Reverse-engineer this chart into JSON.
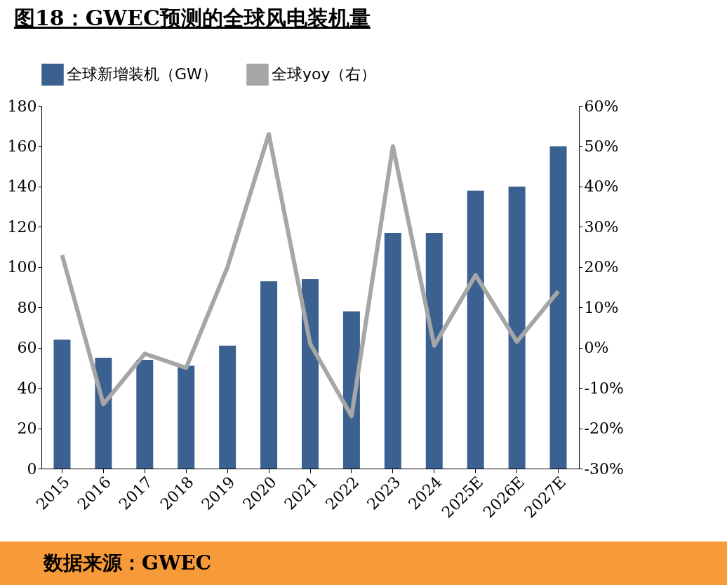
{
  "chart_data": {
    "type": "bar",
    "title": "图18：GWEC预测的全球风电装机量",
    "categories": [
      "2015",
      "2016",
      "2017",
      "2018",
      "2019",
      "2020",
      "2021",
      "2022",
      "2023",
      "2024",
      "2025E",
      "2026E",
      "2027E"
    ],
    "series": [
      {
        "name": "全球新增装机（GW）",
        "color": "#3a6190",
        "values": [
          64,
          55,
          54,
          51,
          61,
          93,
          94,
          78,
          117,
          117,
          138,
          140,
          160
        ]
      },
      {
        "name": "全球yoy（右）",
        "type": "line",
        "axis": "y2",
        "color": "#a6a6a6",
        "values": [
          23,
          -14,
          -1.5,
          -5,
          20,
          53,
          1,
          -17,
          50,
          0.5,
          18,
          1.5,
          14
        ]
      }
    ],
    "ylim": [
      0,
      180
    ],
    "yticks": [
      0,
      20,
      40,
      60,
      80,
      100,
      120,
      140,
      160,
      180
    ],
    "y2lim": [
      -30,
      60
    ],
    "y2ticks": [
      {
        "value": -30,
        "label": "-30%"
      },
      {
        "value": -20,
        "label": "-20%"
      },
      {
        "value": -10,
        "label": "-10%"
      },
      {
        "value": 0,
        "label": "0%"
      },
      {
        "value": 10,
        "label": "10%"
      },
      {
        "value": 20,
        "label": "20%"
      },
      {
        "value": 30,
        "label": "30%"
      },
      {
        "value": 40,
        "label": "40%"
      },
      {
        "value": 50,
        "label": "50%"
      },
      {
        "value": 60,
        "label": "60%"
      }
    ],
    "legend": "top",
    "grid": false,
    "marker": "none",
    "line_style": "solid",
    "annotations": [
      "数据来源：GWEC"
    ]
  }
}
